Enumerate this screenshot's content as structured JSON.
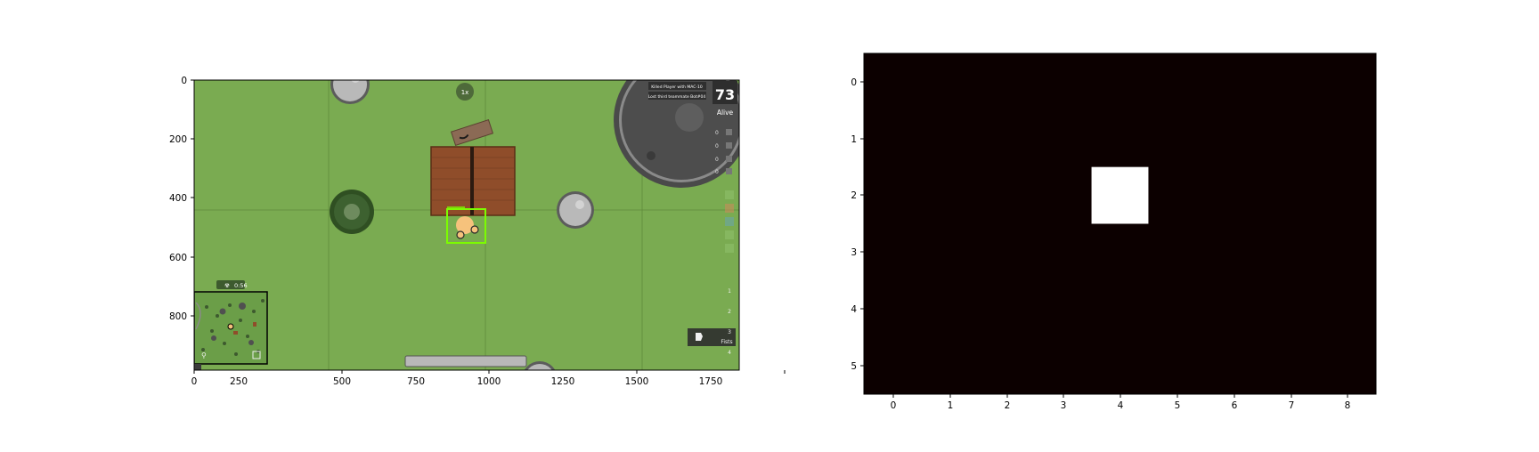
{
  "figure": {
    "left_panel": {
      "x_ticks": [
        "0",
        "250",
        "500",
        "750",
        "1000",
        "1250",
        "1500",
        "1750"
      ],
      "y_ticks": [
        "0",
        "200",
        "400",
        "600",
        "800"
      ]
    },
    "right_panel": {
      "x_ticks": [
        "0",
        "1",
        "2",
        "3",
        "4",
        "5",
        "6",
        "7",
        "8"
      ],
      "y_ticks": [
        "0",
        "1",
        "2",
        "3",
        "4",
        "5"
      ],
      "grid_cols": 9,
      "grid_rows": 6,
      "highlight_cell": {
        "col": 4,
        "row": 2
      },
      "background_color": "#0c0000",
      "highlight_color": "#ffffff"
    }
  },
  "game": {
    "kill_feed": [
      "Killed Player with MAC-10",
      "Lost third teammate Bot#04"
    ],
    "alive_count": "73",
    "alive_label": "Alive",
    "zone_timer": "0:56",
    "counter_bubble": "1x",
    "ammo_counts": [
      "0",
      "0",
      "0",
      "0"
    ],
    "weapon_slots": [
      "1",
      "2",
      "3",
      "4"
    ],
    "equipped_slot_label": "Fists",
    "colors": {
      "grass": "#7aab51",
      "building_roof": "#8f4d2a",
      "selection_box": "#7cfc00",
      "player": "#f6c27c",
      "minimap_border": "#000000"
    }
  }
}
